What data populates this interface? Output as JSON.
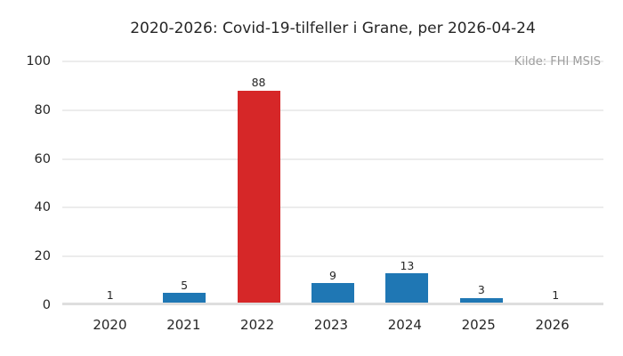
{
  "chart_data": {
    "type": "bar",
    "title": "2020-2026: Covid-19-tilfeller i Grane, per 2026-04-24",
    "source_note": "Kilde: FHI MSIS",
    "categories": [
      "2020",
      "2021",
      "2022",
      "2023",
      "2024",
      "2025",
      "2026"
    ],
    "values": [
      1,
      5,
      88,
      9,
      13,
      3,
      1
    ],
    "bar_colors": [
      "#1f77b4",
      "#1f77b4",
      "#d62728",
      "#1f77b4",
      "#1f77b4",
      "#1f77b4",
      "#1f77b4"
    ],
    "highlighted_category": "2022",
    "xlabel": "",
    "ylabel": "",
    "ylim": [
      0,
      100
    ],
    "yticks": [
      0,
      20,
      40,
      60,
      80,
      100
    ],
    "grid": true,
    "legend": false,
    "value_labels_shown": true,
    "colors": {
      "bar_default": "#1f77b4",
      "bar_highlight": "#d62728",
      "gridline": "#ececec",
      "baseline": "#dedede",
      "text": "#262626",
      "source_text": "#9e9e9e",
      "background": "#ffffff"
    }
  }
}
